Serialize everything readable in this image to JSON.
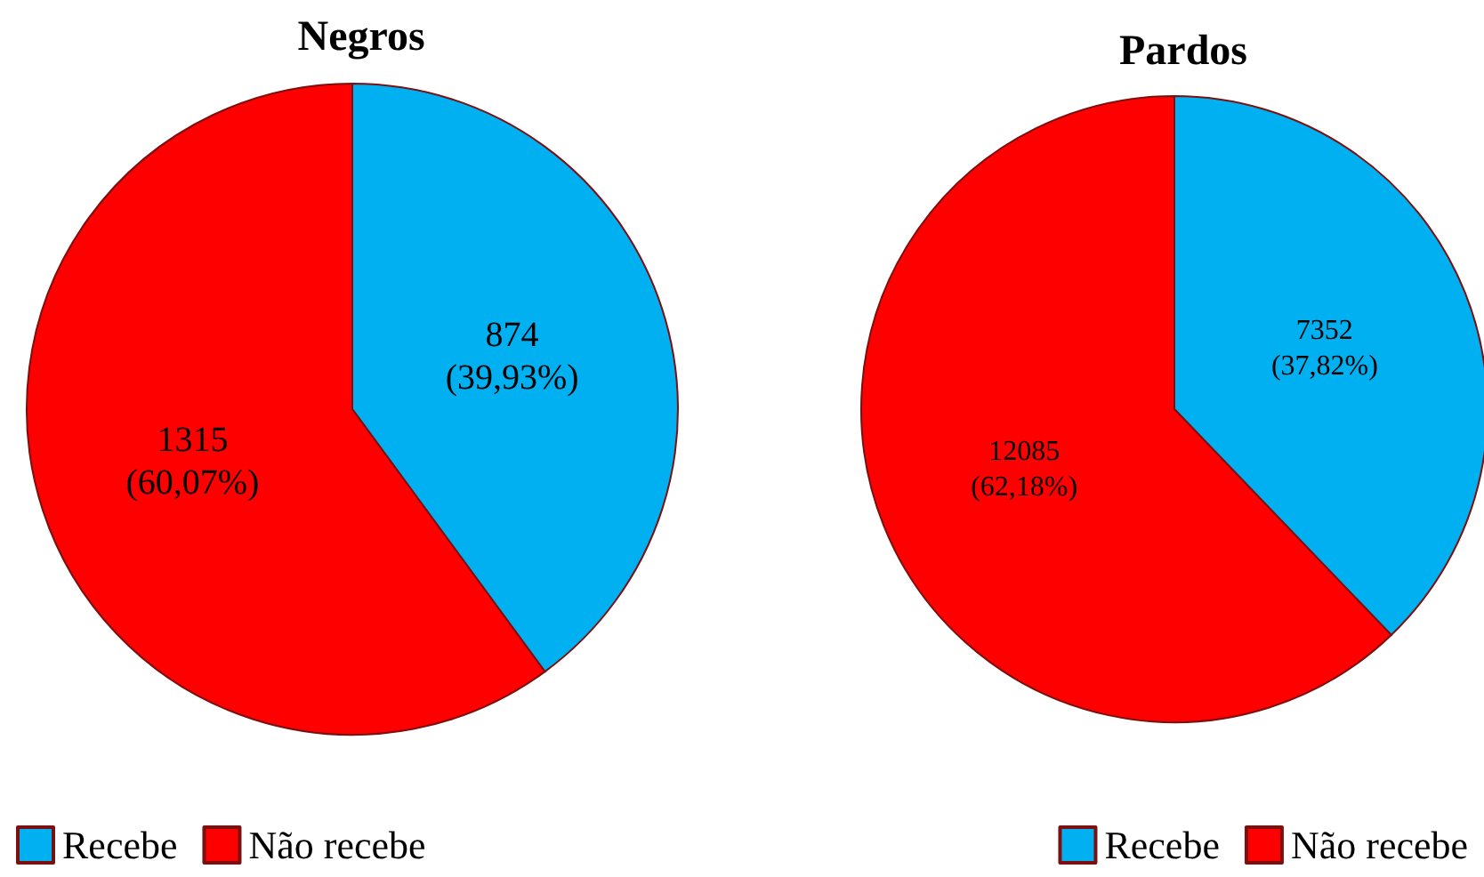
{
  "chart_data": [
    {
      "type": "pie",
      "title": "Negros",
      "categories": [
        "Recebe",
        "Não recebe"
      ],
      "values": [
        874,
        1315
      ],
      "colors": [
        "#00b0f0",
        "#ff0000"
      ],
      "value_labels": [
        "874\n(39,93%)",
        "1315\n(60,07%)"
      ],
      "legend": "bottom left"
    },
    {
      "type": "pie",
      "title": "Pardos",
      "categories": [
        "Recebe",
        "Não recebe"
      ],
      "values": [
        7352,
        12085
      ],
      "colors": [
        "#00b0f0",
        "#ff0000"
      ],
      "value_labels": [
        "7352\n(37,82%)",
        "12085\n(62,18%)"
      ],
      "legend": "bottom right"
    }
  ]
}
